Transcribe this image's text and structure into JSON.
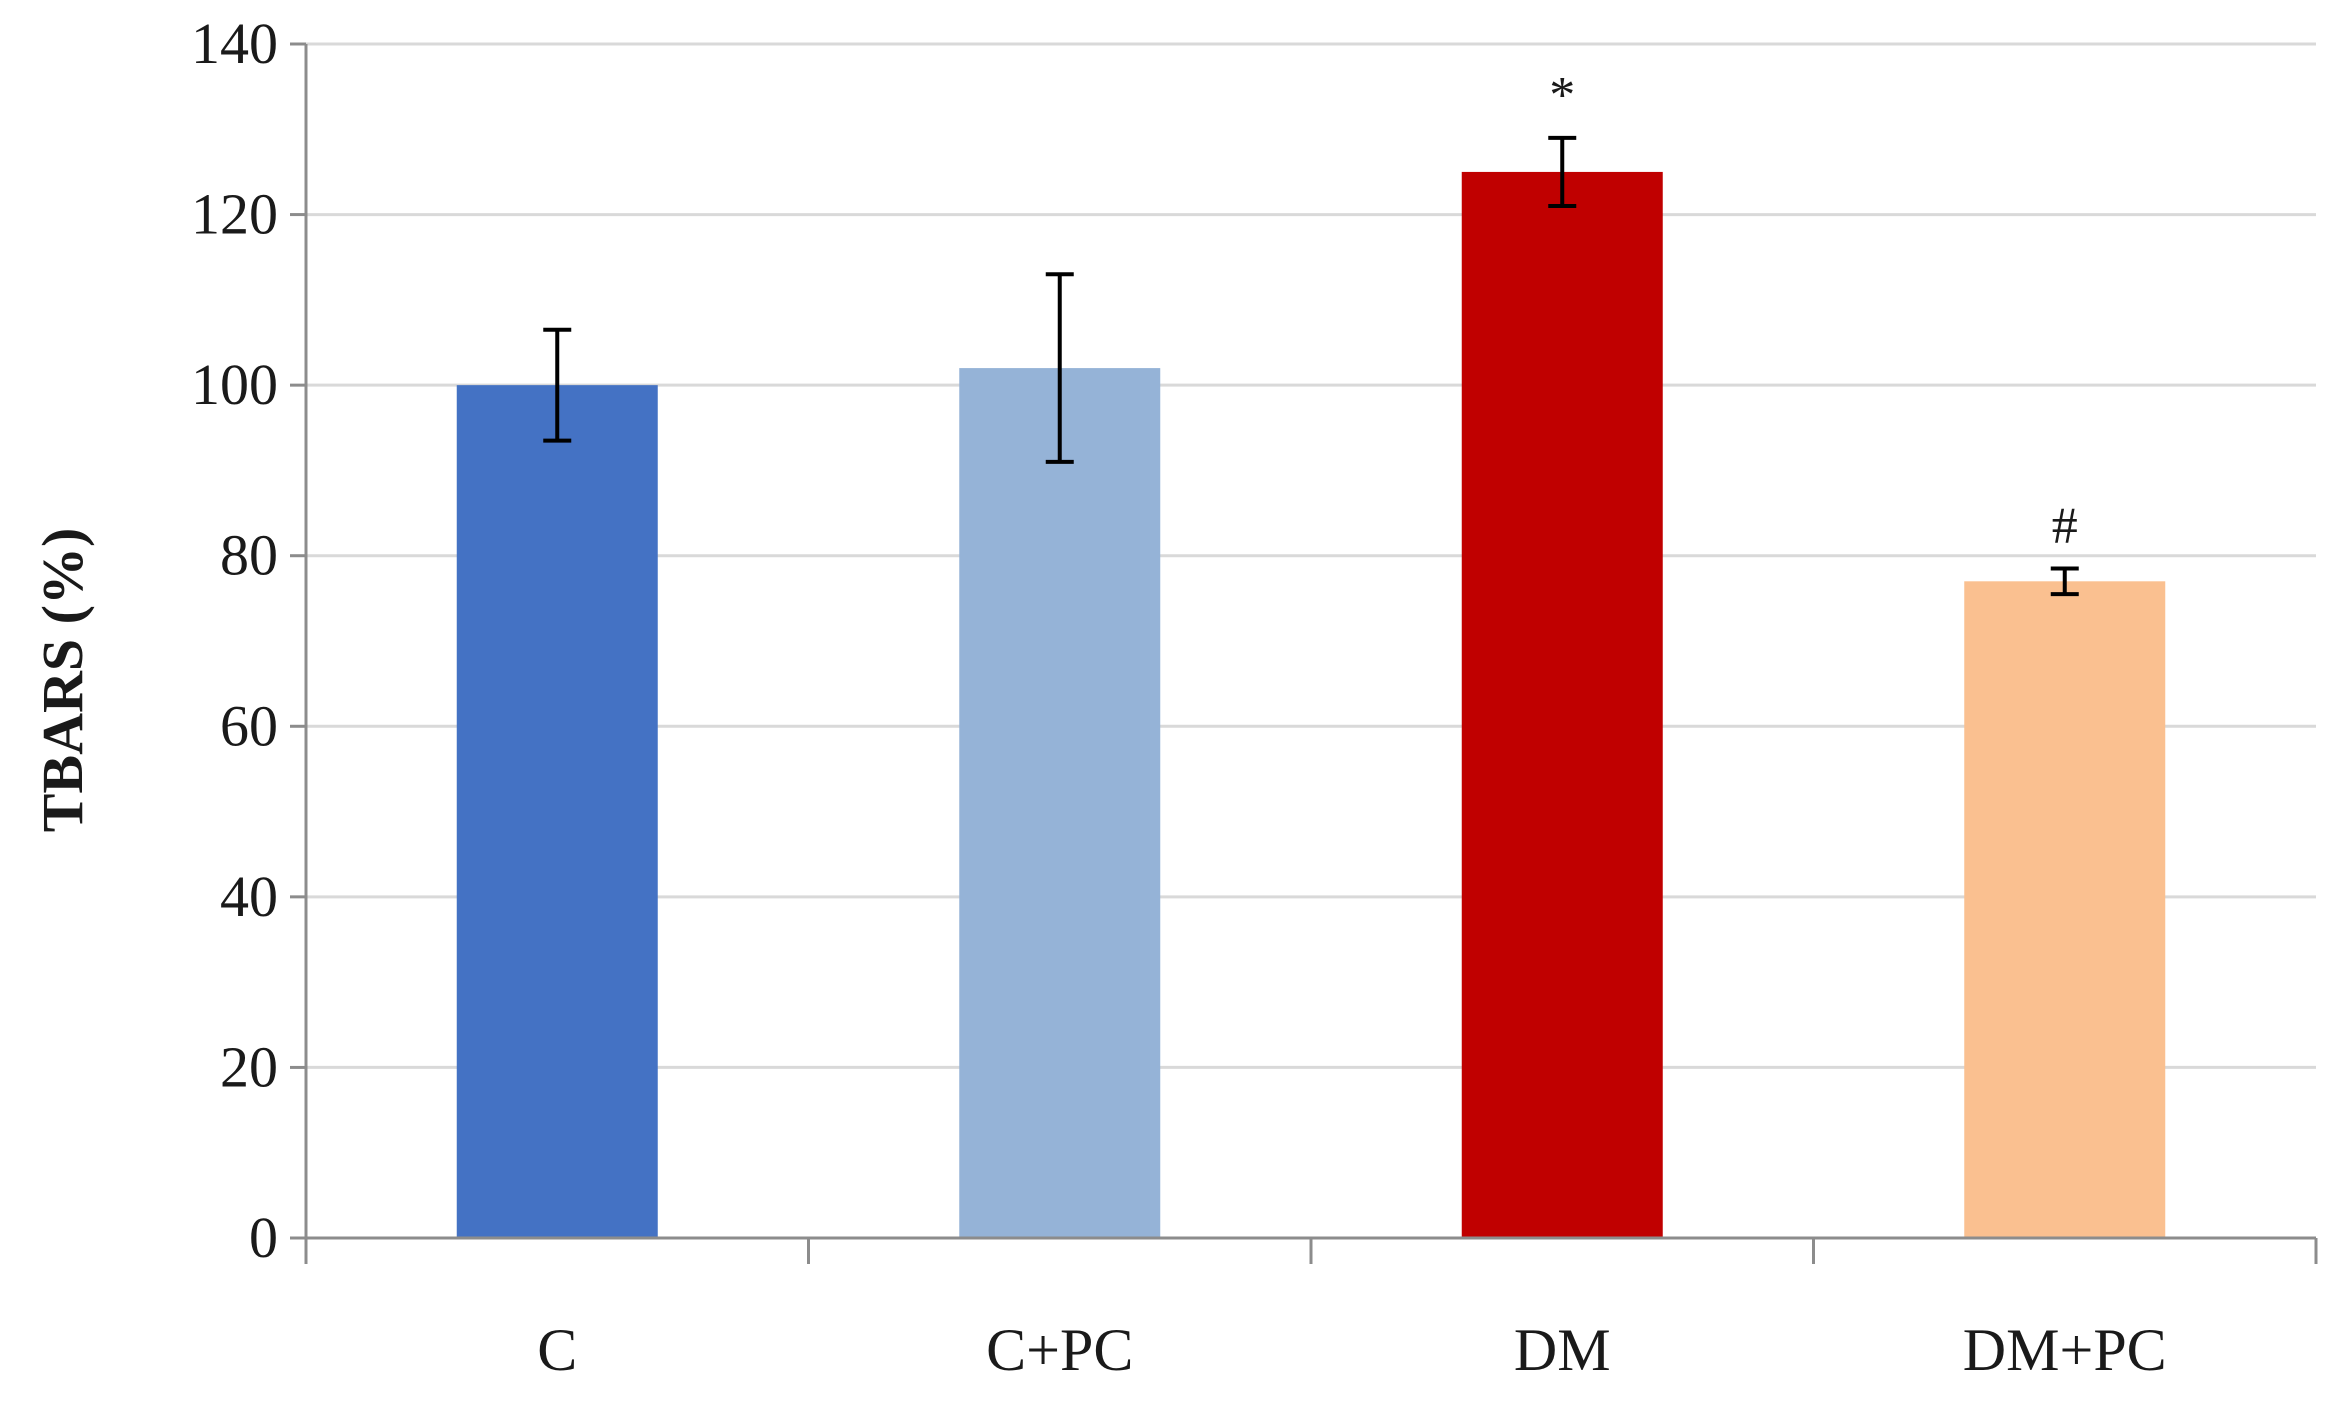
{
  "chart_data": {
    "type": "bar",
    "title": "",
    "xlabel": "",
    "ylabel": "TBARS (%)",
    "ylim": [
      0,
      140
    ],
    "yticks": [
      0,
      20,
      40,
      60,
      80,
      100,
      120,
      140
    ],
    "grid": true,
    "categories": [
      "C",
      "C+PC",
      "DM",
      "DM+PC"
    ],
    "values": [
      100,
      102,
      125,
      77
    ],
    "errors": [
      6.5,
      11,
      4,
      1.5
    ],
    "annotations": [
      "",
      "",
      "*",
      "#"
    ],
    "colors": [
      "#4472c4",
      "#95b3d7",
      "#c00000",
      "#fac090"
    ],
    "axis_color": "#8c8c8c",
    "grid_color": "#d9d9d9"
  }
}
